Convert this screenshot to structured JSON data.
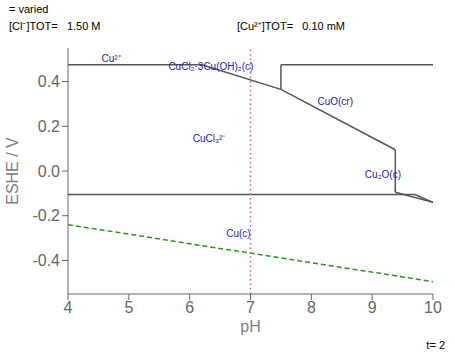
{
  "chart_data": {
    "type": "line",
    "xlabel": "pH",
    "ylabel": "ESHE / V",
    "xlim": [
      4,
      10
    ],
    "ylim": [
      -0.55,
      0.55
    ],
    "xticks": [
      4,
      5,
      6,
      7,
      8,
      9,
      10
    ],
    "yticks": [
      -0.4,
      -0.2,
      {
        "value": 0.0,
        "label": "0.0"
      },
      0.2,
      0.4
    ],
    "grid": false,
    "series": [
      {
        "x": [
          4.0,
          6.2
        ],
        "values": [
          0.475,
          0.475
        ],
        "color": "#555555",
        "line_style": "solid"
      },
      {
        "x": [
          6.2,
          7.5
        ],
        "values": [
          0.475,
          0.365
        ],
        "color": "#555555",
        "line_style": "solid"
      },
      {
        "x": [
          7.5,
          7.5
        ],
        "values": [
          0.365,
          0.475
        ],
        "color": "#555555",
        "line_style": "solid"
      },
      {
        "x": [
          7.5,
          10.0
        ],
        "values": [
          0.475,
          0.475
        ],
        "color": "#555555",
        "line_style": "solid"
      },
      {
        "x": [
          7.5,
          9.38
        ],
        "values": [
          0.365,
          0.095
        ],
        "color": "#555555",
        "line_style": "solid"
      },
      {
        "x": [
          9.38,
          9.38
        ],
        "values": [
          -0.095,
          0.095
        ],
        "color": "#555555",
        "line_style": "solid"
      },
      {
        "x": [
          9.38,
          10.0
        ],
        "values": [
          -0.095,
          -0.14
        ],
        "color": "#555555",
        "line_style": "solid"
      },
      {
        "x": [
          4.0,
          9.7
        ],
        "values": [
          -0.105,
          -0.105
        ],
        "color": "#555555",
        "line_style": "solid"
      },
      {
        "x": [
          9.7,
          10.0
        ],
        "values": [
          -0.105,
          -0.14
        ],
        "color": "#555555",
        "line_style": "solid"
      },
      {
        "x": [
          4.0,
          10.0
        ],
        "values": [
          -0.24,
          -0.495
        ],
        "color": "#229922",
        "line_style": "dashed"
      },
      {
        "x": [
          7.0,
          7.0
        ],
        "values": [
          -0.55,
          0.55
        ],
        "color": "#cc6666",
        "line_style": "dotted"
      }
    ],
    "annotations": [
      {
        "text": "Cu²⁺",
        "x": 4.55,
        "y": 0.488,
        "color": "#2222bb"
      },
      {
        "text": "CuCl₂·3Cu(OH)₂(c)",
        "x": 5.65,
        "y": 0.45,
        "color": "#2222bb"
      },
      {
        "text": "CuO(cr)",
        "x": 8.1,
        "y": 0.295,
        "color": "#2222bb"
      },
      {
        "text": "CuCl₃²⁻",
        "x": 6.05,
        "y": 0.13,
        "color": "#2222bb"
      },
      {
        "text": "Cu₂O(c)",
        "x": 8.88,
        "y": -0.03,
        "color": "#2222bb"
      },
      {
        "text": "Cu(c)",
        "x": 6.6,
        "y": -0.295,
        "color": "#2222bb"
      },
      {
        "text": "= varied"
      },
      {
        "text": "[Cl⁻]TOT=   1.50 M"
      },
      {
        "text": "[Cu²⁺]TOT=   0.10 mM"
      },
      {
        "text": "t= 2"
      }
    ]
  }
}
